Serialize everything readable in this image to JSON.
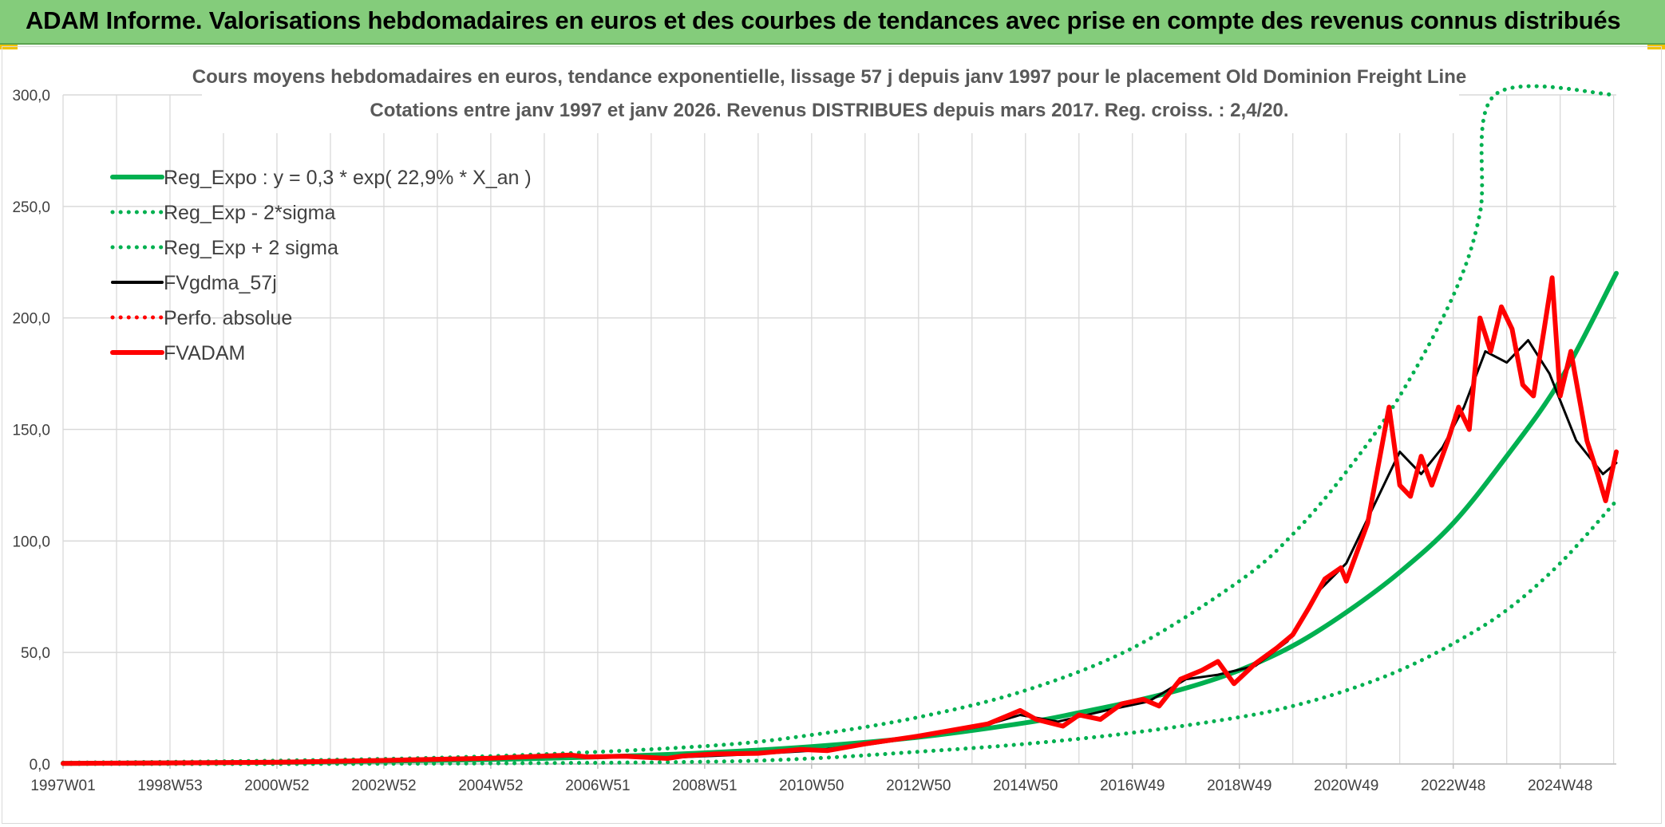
{
  "banner": {
    "title": "ADAM Informe. Valorisations hebdomadaires en euros et des courbes de tendances avec prise en compte des revenus connus distribués"
  },
  "colors": {
    "banner_bg": "#84cc7b",
    "green": "#00b050",
    "red": "#ff0000",
    "black": "#000000",
    "gridline": "#d9d9d9",
    "axis_text": "#404040",
    "title_text": "#595959"
  },
  "chart_data": {
    "type": "line",
    "title": "Cours moyens hebdomadaires en euros, tendance exponentielle, lissage 57 j depuis janv 1997 pour le placement Old Dominion Freight Line",
    "subtitle": "Cotations entre janv 1997 et janv 2026. Revenus DISTRIBUES depuis mars 2017. Reg. croiss. : 2,4/20.",
    "xlabel": "",
    "ylabel": "",
    "ylim": [
      0,
      300
    ],
    "yticks": [
      "0,0",
      "50,0",
      "100,0",
      "150,0",
      "200,0",
      "250,0",
      "300,0"
    ],
    "xlim": [
      1997.0,
      2026.05
    ],
    "xtick_labels": [
      "1997W01",
      "1998W53",
      "2000W52",
      "2002W52",
      "2004W52",
      "2006W51",
      "2008W51",
      "2010W50",
      "2012W50",
      "2014W50",
      "2016W49",
      "2018W49",
      "2020W49",
      "2022W48",
      "2024W48"
    ],
    "xtick_years": [
      1997.0,
      1999.0,
      2001.0,
      2003.0,
      2005.0,
      2007.0,
      2009.0,
      2011.0,
      2013.0,
      2015.0,
      2017.0,
      2019.0,
      2021.0,
      2023.0,
      2025.0
    ],
    "grid": true,
    "legend_position": "top-left",
    "legend": [
      {
        "label": "Reg_Expo : y = 0,3 * exp( 22,9% *  X_an )",
        "color": "#00b050",
        "style": "solid-thick"
      },
      {
        "label": "Reg_Exp - 2*sigma",
        "color": "#00b050",
        "style": "dotted"
      },
      {
        "label": "Reg_Exp + 2 sigma",
        "color": "#00b050",
        "style": "dotted"
      },
      {
        "label": "FVgdma_57j",
        "color": "#000000",
        "style": "solid"
      },
      {
        "label": "Perfo. absolue",
        "color": "#ff0000",
        "style": "dotted"
      },
      {
        "label": "FVADAM",
        "color": "#ff0000",
        "style": "solid-thick"
      }
    ],
    "series": [
      {
        "name": "Reg_Expo : y = 0,3 * exp( 22,9% *  X_an )",
        "x": [
          1997,
          1999,
          2001,
          2003,
          2005,
          2007,
          2009,
          2011,
          2013,
          2015,
          2016,
          2017,
          2018,
          2019,
          2020,
          2021,
          2022,
          2023,
          2024,
          2025,
          2026.05
        ],
        "values": [
          0.3,
          0.5,
          0.7,
          1.3,
          2.0,
          3.2,
          5.0,
          7.8,
          12.0,
          18.5,
          23.0,
          28.0,
          34.0,
          42.0,
          53.0,
          68.0,
          86.0,
          108.0,
          138.0,
          172.0,
          220.0
        ]
      },
      {
        "name": "Reg_Exp - 2*sigma",
        "x": [
          1997,
          2001,
          2005,
          2009,
          2011,
          2013,
          2015,
          2017,
          2019,
          2020,
          2021,
          2022,
          2023,
          2024,
          2025,
          2026.05
        ],
        "values": [
          0.0,
          0.0,
          0.3,
          1.0,
          2.5,
          5.5,
          9.0,
          14.0,
          21.0,
          26.0,
          33.0,
          42.0,
          54.0,
          69.0,
          90.0,
          118.0
        ]
      },
      {
        "name": "Reg_Exp + 2 sigma",
        "x": [
          1997,
          2001,
          2005,
          2009,
          2011,
          2013,
          2015,
          2017,
          2019,
          2020,
          2021,
          2022,
          2023,
          2023.5,
          2023.78,
          2026.05
        ],
        "values": [
          0.6,
          1.5,
          3.5,
          8.0,
          13.0,
          21.0,
          33.0,
          52.0,
          82.0,
          103.0,
          131.0,
          165.0,
          210.0,
          247.0,
          300.0,
          300.0
        ]
      },
      {
        "name": "FVgdma_57j",
        "x": [
          1997,
          1999,
          2001,
          2003,
          2005,
          2006.6,
          2007.5,
          2008.5,
          2010,
          2011,
          2012,
          2013,
          2014.2,
          2014.9,
          2015.6,
          2016.5,
          2017.3,
          2018,
          2018.6,
          2019.3,
          2019.9,
          2020.5,
          2021,
          2021.5,
          2022,
          2022.4,
          2022.8,
          2023.2,
          2023.6,
          2024,
          2024.4,
          2024.8,
          2025.3,
          2025.8,
          2026.05
        ],
        "values": [
          0.3,
          0.5,
          0.8,
          1.5,
          2.5,
          3.5,
          3.0,
          3.0,
          4.5,
          6.0,
          8.5,
          12.0,
          17.0,
          22.0,
          19.0,
          24.0,
          28.0,
          38.0,
          40.0,
          44.0,
          55.0,
          78.0,
          90.0,
          115.0,
          140.0,
          130.0,
          142.0,
          160.0,
          185.0,
          180.0,
          190.0,
          175.0,
          145.0,
          130.0,
          135.0
        ]
      },
      {
        "name": "FVADAM",
        "x": [
          1997,
          1999,
          2001,
          2003,
          2005,
          2006.5,
          2006.8,
          2007.5,
          2008.3,
          2008.6,
          2009.2,
          2010,
          2010.8,
          2011.3,
          2012,
          2013,
          2013.6,
          2014.3,
          2014.9,
          2015.2,
          2015.7,
          2016,
          2016.4,
          2016.8,
          2017.2,
          2017.5,
          2017.9,
          2018.3,
          2018.6,
          2018.9,
          2019.3,
          2019.7,
          2020,
          2020.3,
          2020.6,
          2020.9,
          2021,
          2021.4,
          2021.8,
          2022,
          2022.2,
          2022.4,
          2022.6,
          2022.9,
          2023.1,
          2023.3,
          2023.5,
          2023.7,
          2023.9,
          2024.1,
          2024.3,
          2024.5,
          2024.7,
          2024.85,
          2025,
          2025.2,
          2025.5,
          2025.7,
          2025.85,
          2026.05
        ],
        "values": [
          0.3,
          0.5,
          0.8,
          1.6,
          2.6,
          4.0,
          3.2,
          3.5,
          2.5,
          3.6,
          4.5,
          4.8,
          6.5,
          6.0,
          9.0,
          12.5,
          15.0,
          18.0,
          24.0,
          20.0,
          17.0,
          22.0,
          20.0,
          27.0,
          29.0,
          26.0,
          38.0,
          42.0,
          46.0,
          36.0,
          45.0,
          52.0,
          58.0,
          70.0,
          83.0,
          88.0,
          82.0,
          108.0,
          160.0,
          125.0,
          120.0,
          138.0,
          125.0,
          145.0,
          160.0,
          150.0,
          200.0,
          185.0,
          205.0,
          195.0,
          170.0,
          165.0,
          195.0,
          218.0,
          165.0,
          185.0,
          145.0,
          130.0,
          118.0,
          140.0
        ]
      }
    ]
  }
}
